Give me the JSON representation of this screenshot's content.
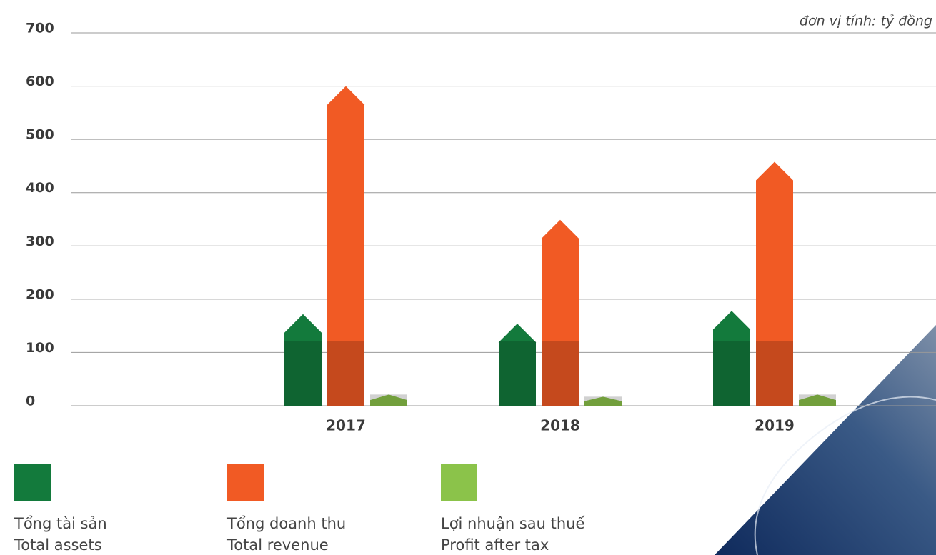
{
  "chart_data": {
    "type": "bar",
    "annotation": "đơn vị tính: tỷ đồng",
    "categories": [
      "2017",
      "2018",
      "2019"
    ],
    "series": [
      {
        "name": "Tổng tài sản",
        "name_en": "Total assets",
        "color": "#137a3c",
        "values": [
          172,
          154,
          178
        ]
      },
      {
        "name": "Tổng doanh thu",
        "name_en": "Total revenue",
        "color": "#f15a24",
        "values": [
          600,
          349,
          458
        ]
      },
      {
        "name": "Lợi nhuận sau thuế",
        "name_en": "Profit after tax",
        "color": "#8bc34a",
        "values": [
          21,
          17,
          21
        ]
      }
    ],
    "ylim": [
      0,
      700
    ],
    "yticks": [
      0,
      100,
      200,
      300,
      400,
      500,
      600,
      700
    ],
    "grid": true
  }
}
